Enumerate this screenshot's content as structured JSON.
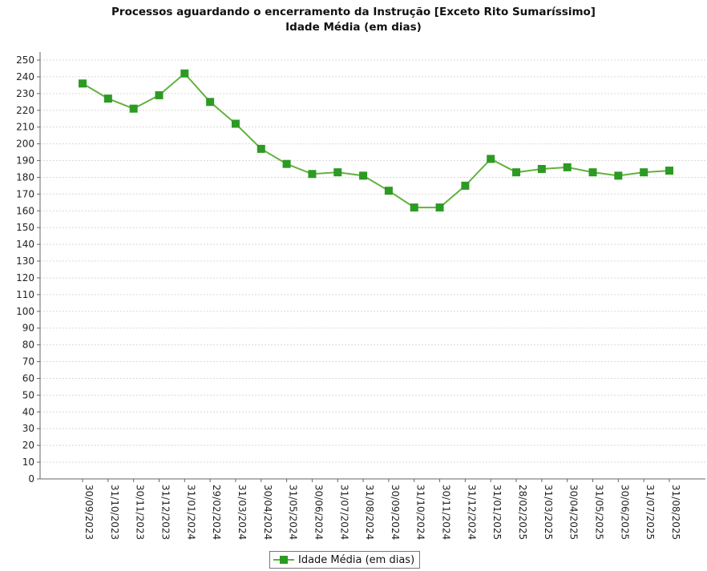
{
  "chart_data": {
    "type": "line",
    "title": "Processos aguardando o encerramento da Instrução [Exceto Rito Sumaríssimo]",
    "subtitle": "Idade Média (em dias)",
    "categories": [
      "30/09/2023",
      "31/10/2023",
      "30/11/2023",
      "31/12/2023",
      "31/01/2024",
      "29/02/2024",
      "31/03/2024",
      "30/04/2024",
      "31/05/2024",
      "30/06/2024",
      "31/07/2024",
      "31/08/2024",
      "30/09/2024",
      "31/10/2024",
      "30/11/2024",
      "31/12/2024",
      "31/01/2025",
      "28/02/2025",
      "31/03/2025",
      "30/04/2025",
      "31/05/2025",
      "30/06/2025",
      "31/07/2025",
      "31/08/2025"
    ],
    "series": [
      {
        "name": "Idade Média (em dias)",
        "values": [
          236,
          227,
          221,
          229,
          242,
          225,
          212,
          197,
          188,
          182,
          183,
          181,
          172,
          162,
          162,
          175,
          191,
          183,
          185,
          186,
          183,
          181,
          183,
          184
        ]
      }
    ],
    "ylim": [
      0,
      250
    ],
    "y_ticks": [
      0,
      10,
      20,
      30,
      40,
      50,
      60,
      70,
      80,
      90,
      100,
      110,
      120,
      130,
      140,
      150,
      160,
      170,
      180,
      190,
      200,
      210,
      220,
      230,
      240,
      250
    ],
    "grid": true,
    "legend_position": "bottom-center",
    "colors": {
      "line": "#62b23c",
      "marker": "#2c9a23"
    }
  }
}
